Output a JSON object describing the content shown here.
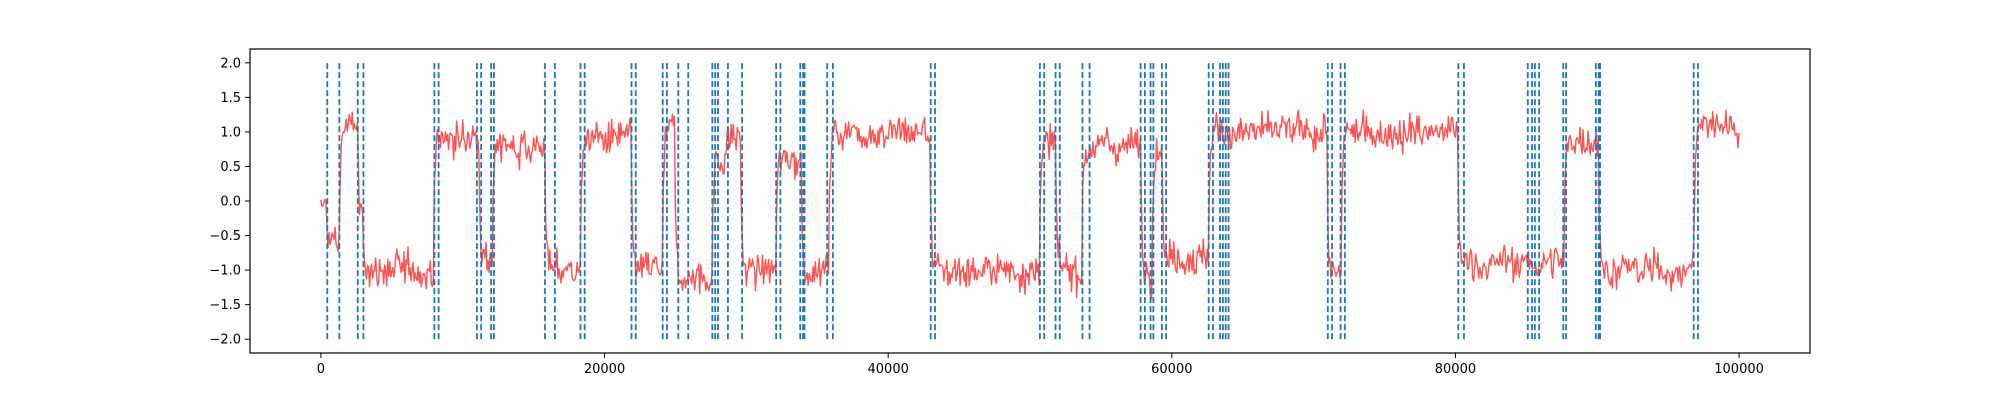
{
  "chart_data": {
    "type": "line",
    "title": "",
    "xlabel": "",
    "ylabel": "",
    "xlim": [
      -5000,
      105000
    ],
    "ylim": [
      -2.2,
      2.2
    ],
    "grid": false,
    "x_ticks": [
      0,
      20000,
      40000,
      60000,
      80000,
      100000
    ],
    "x_tick_labels": [
      "0",
      "20000",
      "40000",
      "60000",
      "80000",
      "100000"
    ],
    "y_ticks": [
      -2.0,
      -1.5,
      -1.0,
      -0.5,
      0.0,
      0.5,
      1.0,
      1.5,
      2.0
    ],
    "y_tick_labels": [
      "−2.0",
      "−1.5",
      "−1.0",
      "−0.5",
      "0.0",
      "0.5",
      "1.0",
      "1.5",
      "2.0"
    ],
    "signal": {
      "color": "#ff4a4a",
      "x_range": [
        0,
        100000
      ],
      "noise_amplitude": 0.2,
      "regime_levels": [
        {
          "x_start": 0,
          "x_end": 400,
          "level": -0.1
        },
        {
          "x_start": 400,
          "x_end": 1300,
          "level": -0.6
        },
        {
          "x_start": 1300,
          "x_end": 2600,
          "level": 1.1
        },
        {
          "x_start": 2600,
          "x_end": 3000,
          "level": -0.3
        },
        {
          "x_start": 3000,
          "x_end": 8000,
          "level": -1.0
        },
        {
          "x_start": 8000,
          "x_end": 11200,
          "level": 0.9
        },
        {
          "x_start": 11200,
          "x_end": 12100,
          "level": -0.8
        },
        {
          "x_start": 12100,
          "x_end": 15800,
          "level": 0.8
        },
        {
          "x_start": 15800,
          "x_end": 18300,
          "level": -1.0
        },
        {
          "x_start": 18300,
          "x_end": 21900,
          "level": 0.9
        },
        {
          "x_start": 21900,
          "x_end": 24100,
          "level": -1.0
        },
        {
          "x_start": 24100,
          "x_end": 25000,
          "level": 1.0
        },
        {
          "x_start": 25000,
          "x_end": 27600,
          "level": -1.1
        },
        {
          "x_start": 27600,
          "x_end": 28500,
          "level": 0.6
        },
        {
          "x_start": 28500,
          "x_end": 29600,
          "level": 0.9
        },
        {
          "x_start": 29600,
          "x_end": 32100,
          "level": -1.0
        },
        {
          "x_start": 32100,
          "x_end": 33900,
          "level": 0.6
        },
        {
          "x_start": 33900,
          "x_end": 35800,
          "level": -1.0
        },
        {
          "x_start": 35800,
          "x_end": 43000,
          "level": 1.0
        },
        {
          "x_start": 43000,
          "x_end": 50700,
          "level": -1.0
        },
        {
          "x_start": 50700,
          "x_end": 51800,
          "level": 0.8
        },
        {
          "x_start": 51800,
          "x_end": 53700,
          "level": -1.0
        },
        {
          "x_start": 53700,
          "x_end": 57800,
          "level": 0.8
        },
        {
          "x_start": 57800,
          "x_end": 58600,
          "level": -1.0
        },
        {
          "x_start": 58600,
          "x_end": 59300,
          "level": 0.8
        },
        {
          "x_start": 59300,
          "x_end": 62600,
          "level": -0.8
        },
        {
          "x_start": 62600,
          "x_end": 71000,
          "level": 1.0
        },
        {
          "x_start": 71000,
          "x_end": 72000,
          "level": -1.1
        },
        {
          "x_start": 72000,
          "x_end": 80200,
          "level": 1.0
        },
        {
          "x_start": 80200,
          "x_end": 85100,
          "level": -0.9
        },
        {
          "x_start": 85100,
          "x_end": 87700,
          "level": -0.9
        },
        {
          "x_start": 87700,
          "x_end": 90100,
          "level": 0.9
        },
        {
          "x_start": 90100,
          "x_end": 96800,
          "level": -1.0
        },
        {
          "x_start": 96800,
          "x_end": 100000,
          "level": 1.1
        }
      ]
    },
    "change_points": {
      "color": "#1f77b4",
      "style": "dashed",
      "y_range": [
        -2.0,
        2.0
      ],
      "x": [
        450,
        1300,
        2600,
        3000,
        8000,
        8300,
        11000,
        11300,
        12000,
        12200,
        15800,
        16500,
        18300,
        18600,
        21900,
        22200,
        24100,
        24400,
        25200,
        25900,
        27600,
        27800,
        28000,
        28700,
        29700,
        32100,
        32400,
        33800,
        34000,
        34100,
        35700,
        36100,
        43000,
        43300,
        50700,
        51000,
        51800,
        52100,
        53700,
        54200,
        57800,
        58100,
        58500,
        58700,
        59300,
        59600,
        62600,
        62900,
        63400,
        63600,
        63800,
        64000,
        71000,
        71300,
        71900,
        72200,
        80200,
        80600,
        85100,
        85400,
        85600,
        85900,
        87600,
        87800,
        89900,
        90100,
        90200,
        96800,
        97100
      ]
    }
  }
}
